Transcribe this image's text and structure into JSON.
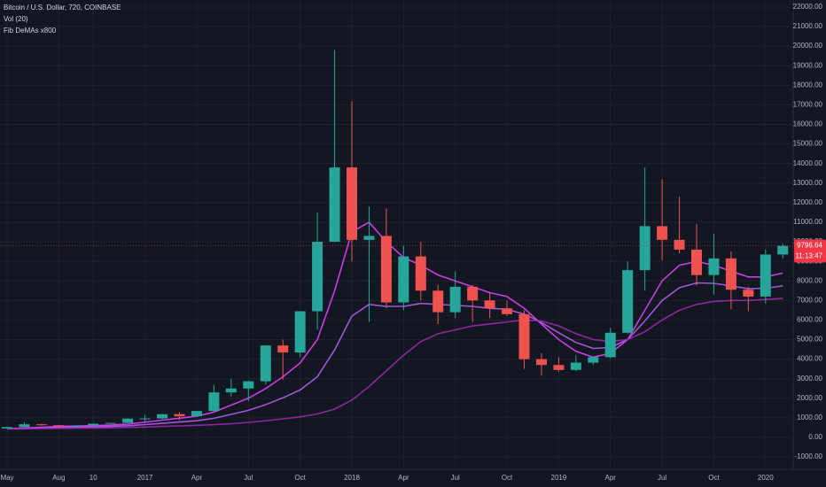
{
  "chart_data": {
    "type": "candlestick",
    "title": "Bitcoin / U.S. Dollar, 720, COINBASE",
    "indicators": [
      "Vol (20)",
      "Fib DeMAs x800"
    ],
    "categories": [
      "May",
      null,
      null,
      "Aug",
      null,
      "10",
      null,
      null,
      "2017",
      null,
      null,
      "Apr",
      null,
      null,
      "Jul",
      null,
      null,
      "Oct",
      null,
      null,
      "2018",
      null,
      null,
      "Apr",
      null,
      null,
      "Jul",
      null,
      null,
      "Oct",
      null,
      null,
      "2019",
      null,
      null,
      "Apr",
      null,
      null,
      "Jul",
      null,
      null,
      "Oct",
      null,
      null,
      "2020",
      null
    ],
    "open": [
      450,
      530,
      670,
      625,
      575,
      610,
      700,
      740,
      960,
      970,
      1190,
      1080,
      1350,
      2300,
      2500,
      2870,
      4700,
      4340,
      6450,
      10000,
      13800,
      10100,
      10300,
      6900,
      9250,
      7500,
      6400,
      7700,
      7000,
      6600,
      6300,
      4000,
      3700,
      3450,
      3820,
      4100,
      5350,
      8550,
      10800,
      10100,
      9600,
      8300,
      9150,
      7550,
      7200,
      9350
    ],
    "high": [
      550,
      780,
      700,
      630,
      620,
      720,
      750,
      980,
      1150,
      1200,
      1300,
      1350,
      2700,
      3000,
      2900,
      4700,
      5000,
      6400,
      11500,
      19800,
      17200,
      11800,
      11700,
      9800,
      10000,
      7800,
      8500,
      7800,
      7400,
      7000,
      6500,
      4300,
      4100,
      4200,
      4150,
      5600,
      9000,
      13800,
      13200,
      12300,
      10900,
      10400,
      9500,
      7700,
      9600,
      9900
    ],
    "low": [
      440,
      520,
      600,
      530,
      590,
      600,
      690,
      740,
      780,
      920,
      890,
      1060,
      1350,
      2100,
      1850,
      2700,
      2950,
      4100,
      5500,
      10000,
      9000,
      5900,
      6600,
      6500,
      7000,
      5800,
      6100,
      5900,
      6100,
      6200,
      3500,
      3150,
      3350,
      3380,
      3700,
      4050,
      5300,
      7500,
      9050,
      9400,
      7750,
      7300,
      6550,
      6450,
      6850,
      9150
    ],
    "close": [
      530,
      670,
      625,
      575,
      610,
      700,
      740,
      960,
      970,
      1190,
      1080,
      1350,
      2300,
      2500,
      2870,
      4700,
      4340,
      6450,
      10000,
      13800,
      10100,
      10300,
      6900,
      9250,
      7500,
      6400,
      7700,
      7000,
      6600,
      6300,
      4000,
      3700,
      3450,
      3820,
      4100,
      5350,
      8550,
      10800,
      10100,
      9600,
      8300,
      9150,
      7550,
      7200,
      9350,
      9796.64
    ],
    "last_price": 9796.64,
    "countdown": "11:13:47",
    "up_color": "#26a69a",
    "down_color": "#ef5350",
    "price_line_color": "#f23645",
    "ma_lines": [
      {
        "color": "#e040fb",
        "values": [
          450,
          480,
          520,
          560,
          580,
          600,
          630,
          680,
          780,
          880,
          980,
          1080,
          1300,
          1650,
          2000,
          2500,
          3100,
          3800,
          5000,
          7500,
          10500,
          11000,
          10000,
          9200,
          8800,
          8300,
          8000,
          7700,
          7400,
          7200,
          6600,
          5800,
          5000,
          4400,
          4100,
          4300,
          5000,
          6500,
          8000,
          8800,
          9000,
          8800,
          8500,
          8200,
          8200,
          8400
        ]
      },
      {
        "color": "#b45cf0",
        "values": [
          440,
          460,
          485,
          510,
          525,
          540,
          560,
          595,
          655,
          720,
          785,
          850,
          975,
          1175,
          1385,
          1675,
          2025,
          2425,
          3100,
          4475,
          6200,
          6800,
          6700,
          6700,
          6850,
          6800,
          6750,
          6700,
          6600,
          6550,
          6300,
          5875,
          5350,
          4850,
          4550,
          4600,
          5000,
          5950,
          7000,
          7650,
          7900,
          7875,
          7750,
          7600,
          7625,
          7750
        ]
      },
      {
        "color": "#9c27b0",
        "values": [
          430,
          440,
          450,
          460,
          470,
          480,
          490,
          510,
          530,
          560,
          590,
          620,
          650,
          700,
          770,
          850,
          950,
          1050,
          1200,
          1450,
          1900,
          2600,
          3400,
          4200,
          4900,
          5300,
          5500,
          5700,
          5800,
          5900,
          6000,
          5950,
          5700,
          5300,
          5000,
          4900,
          5000,
          5400,
          6000,
          6500,
          6800,
          6950,
          7000,
          7000,
          7050,
          7100
        ]
      }
    ],
    "ylim": [
      -1630,
      22360
    ],
    "yticks": [
      {
        "value": 22000,
        "label": "22000.00"
      },
      {
        "value": 21000,
        "label": "21000.00"
      },
      {
        "value": 20000,
        "label": "20000.00"
      },
      {
        "value": 19000,
        "label": "19000.00"
      },
      {
        "value": 18000,
        "label": "18000.00"
      },
      {
        "value": 17000,
        "label": "17000.00"
      },
      {
        "value": 16000,
        "label": "16000.00"
      },
      {
        "value": 15000,
        "label": "15000.00"
      },
      {
        "value": 14000,
        "label": "14000.00"
      },
      {
        "value": 13000,
        "label": "13000.00"
      },
      {
        "value": 12000,
        "label": "12000.00"
      },
      {
        "value": 11000,
        "label": "11000.00"
      },
      {
        "value": 10000,
        "label": "10000.00"
      },
      {
        "value": 9000,
        "label": "9000.00"
      },
      {
        "value": 8000,
        "label": "8000.00"
      },
      {
        "value": 7000,
        "label": "7000.00"
      },
      {
        "value": 6000,
        "label": "6000.00"
      },
      {
        "value": 5000,
        "label": "5000.00"
      },
      {
        "value": 4000,
        "label": "4000.00"
      },
      {
        "value": 3000,
        "label": "3000.00"
      },
      {
        "value": 2000,
        "label": "2000.00"
      },
      {
        "value": 1000,
        "label": "1000.00"
      },
      {
        "value": 0,
        "label": "0.00"
      },
      {
        "value": -1000,
        "label": "-1000.00"
      }
    ],
    "grid": true
  }
}
